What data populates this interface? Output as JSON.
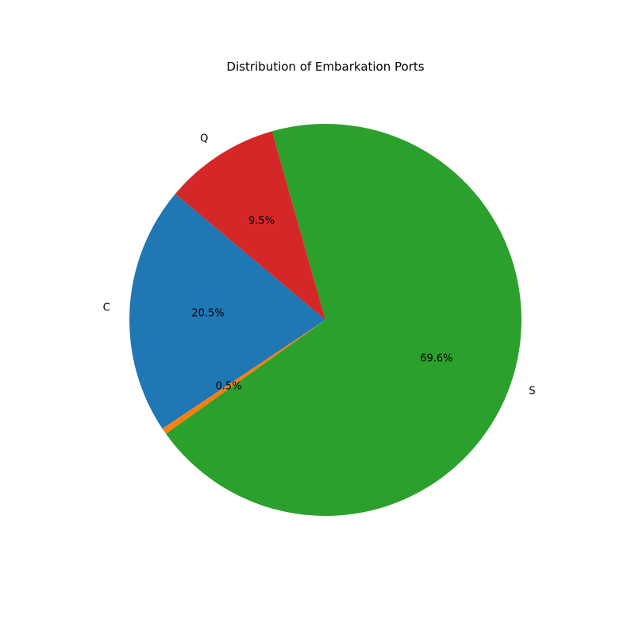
{
  "chart_data": {
    "type": "pie",
    "title": "Distribution of Embarkation Ports",
    "slices": [
      {
        "label": "C",
        "value": 20.5,
        "pct_label": "20.5%",
        "color": "#1f77b4"
      },
      {
        "label": "",
        "value": 0.5,
        "pct_label": "0.5%",
        "color": "#ff7f0e"
      },
      {
        "label": "S",
        "value": 69.6,
        "pct_label": "69.6%",
        "color": "#2ca02c"
      },
      {
        "label": "Q",
        "value": 9.5,
        "pct_label": "9.5%",
        "color": "#d62728"
      }
    ],
    "legend": "none"
  }
}
